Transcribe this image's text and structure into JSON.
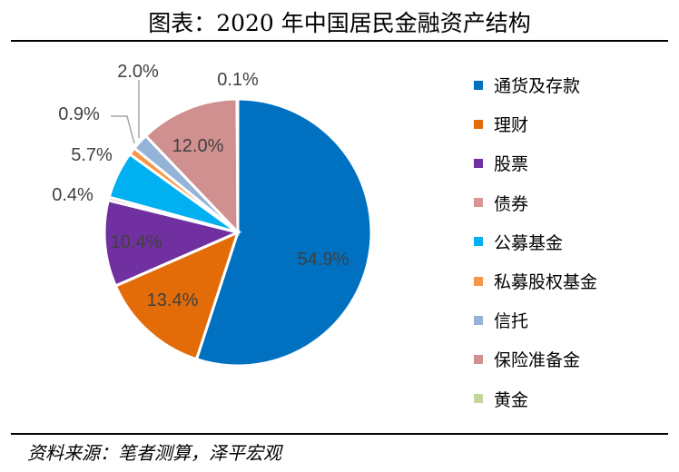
{
  "title": "图表：2020 年中国居民金融资产结构",
  "source": "资料来源：笔者测算，泽平宏观",
  "chart_data": {
    "type": "pie",
    "title": "图表：2020 年中国居民金融资产结构",
    "legend_position": "right",
    "start": "top-clockwise",
    "categories": [
      "通货及存款",
      "理财",
      "股票",
      "债券",
      "公募基金",
      "私募股权基金",
      "信托",
      "保险准备金",
      "黄金"
    ],
    "values": [
      54.9,
      13.4,
      10.4,
      0.4,
      5.7,
      0.9,
      2.0,
      12.0,
      0.1
    ],
    "labels": [
      "54.9%",
      "13.4%",
      "10.4%",
      "0.4%",
      "5.7%",
      "0.9%",
      "2.0%",
      "12.0%",
      "0.1%"
    ],
    "colors": [
      "#0070C0",
      "#E36C09",
      "#7030A0",
      "#D99694",
      "#00B0F0",
      "#F79646",
      "#95B3D7",
      "#D09090",
      "#C3D69B"
    ]
  }
}
